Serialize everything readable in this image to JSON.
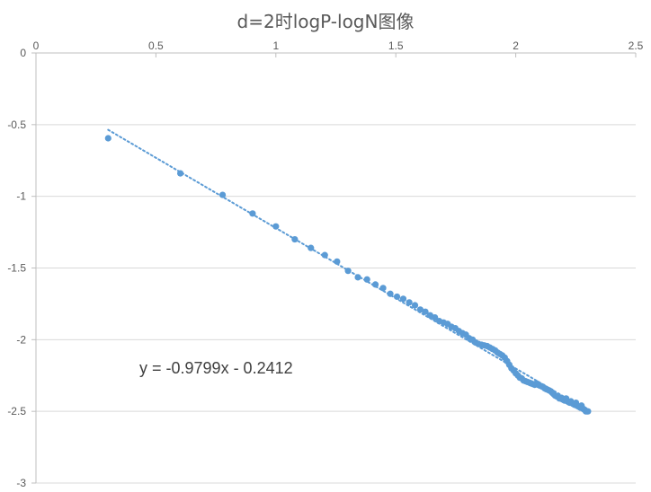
{
  "chart_data": {
    "type": "scatter",
    "title": "d=2时logP-logN图像",
    "xlabel": "",
    "ylabel": "",
    "xlim": [
      0,
      2.5
    ],
    "ylim": [
      -3,
      0
    ],
    "x_ticks": [
      0,
      0.5,
      1,
      1.5,
      2,
      2.5
    ],
    "x_tick_labels": [
      "0",
      "0.5",
      "1",
      "1.5",
      "2",
      "2.5"
    ],
    "y_ticks": [
      0,
      -0.5,
      -1,
      -1.5,
      -2,
      -2.5,
      -3
    ],
    "y_tick_labels": [
      "0",
      "-0.5",
      "-1",
      "-1.5",
      "-2",
      "-2.5",
      "-3"
    ],
    "grid": "horizontal",
    "x_axis_position": "top",
    "marker_color": "#5B9BD5",
    "series": [
      {
        "points": [
          [
            0.301,
            -0.595
          ],
          [
            0.602,
            -0.84
          ],
          [
            0.778,
            -0.99
          ],
          [
            0.903,
            -1.12
          ],
          [
            1.0,
            -1.21
          ],
          [
            1.079,
            -1.3
          ],
          [
            1.146,
            -1.36
          ],
          [
            1.204,
            -1.41
          ],
          [
            1.255,
            -1.455
          ],
          [
            1.301,
            -1.52
          ],
          [
            1.342,
            -1.565
          ],
          [
            1.38,
            -1.58
          ],
          [
            1.415,
            -1.615
          ],
          [
            1.447,
            -1.64
          ],
          [
            1.477,
            -1.68
          ],
          [
            1.505,
            -1.7
          ],
          [
            1.531,
            -1.715
          ],
          [
            1.556,
            -1.74
          ],
          [
            1.58,
            -1.76
          ],
          [
            1.602,
            -1.79
          ],
          [
            1.623,
            -1.805
          ],
          [
            1.643,
            -1.83
          ],
          [
            1.663,
            -1.845
          ],
          [
            1.681,
            -1.87
          ],
          [
            1.699,
            -1.88
          ],
          [
            1.716,
            -1.89
          ],
          [
            1.732,
            -1.91
          ],
          [
            1.748,
            -1.92
          ],
          [
            1.763,
            -1.94
          ],
          [
            1.778,
            -1.955
          ],
          [
            1.792,
            -1.965
          ],
          [
            1.806,
            -1.99
          ],
          [
            1.82,
            -2.0
          ],
          [
            1.833,
            -2.02
          ],
          [
            1.845,
            -2.03
          ],
          [
            1.857,
            -2.035
          ],
          [
            1.869,
            -2.04
          ],
          [
            1.881,
            -2.045
          ],
          [
            1.892,
            -2.055
          ],
          [
            1.903,
            -2.065
          ],
          [
            1.914,
            -2.075
          ],
          [
            1.924,
            -2.09
          ],
          [
            1.934,
            -2.1
          ],
          [
            1.944,
            -2.11
          ],
          [
            1.954,
            -2.125
          ],
          [
            1.964,
            -2.15
          ],
          [
            1.973,
            -2.175
          ],
          [
            1.982,
            -2.2
          ],
          [
            1.991,
            -2.215
          ],
          [
            2.0,
            -2.235
          ],
          [
            2.009,
            -2.25
          ],
          [
            2.017,
            -2.265
          ],
          [
            2.025,
            -2.27
          ],
          [
            2.033,
            -2.285
          ],
          [
            2.041,
            -2.29
          ],
          [
            2.049,
            -2.295
          ],
          [
            2.057,
            -2.3
          ],
          [
            2.064,
            -2.305
          ],
          [
            2.072,
            -2.31
          ],
          [
            2.079,
            -2.315
          ],
          [
            2.086,
            -2.305
          ],
          [
            2.093,
            -2.315
          ],
          [
            2.1,
            -2.32
          ],
          [
            2.107,
            -2.325
          ],
          [
            2.114,
            -2.33
          ],
          [
            2.121,
            -2.34
          ],
          [
            2.127,
            -2.345
          ],
          [
            2.134,
            -2.35
          ],
          [
            2.14,
            -2.355
          ],
          [
            2.146,
            -2.36
          ],
          [
            2.152,
            -2.37
          ],
          [
            2.158,
            -2.38
          ],
          [
            2.164,
            -2.39
          ],
          [
            2.17,
            -2.395
          ],
          [
            2.176,
            -2.4
          ],
          [
            2.182,
            -2.41
          ],
          [
            2.188,
            -2.405
          ],
          [
            2.193,
            -2.415
          ],
          [
            2.199,
            -2.42
          ],
          [
            2.204,
            -2.425
          ],
          [
            2.21,
            -2.41
          ],
          [
            2.215,
            -2.43
          ],
          [
            2.22,
            -2.435
          ],
          [
            2.225,
            -2.44
          ],
          [
            2.23,
            -2.43
          ],
          [
            2.236,
            -2.445
          ],
          [
            2.241,
            -2.45
          ],
          [
            2.246,
            -2.455
          ],
          [
            2.251,
            -2.44
          ],
          [
            2.255,
            -2.46
          ],
          [
            2.26,
            -2.465
          ],
          [
            2.265,
            -2.47
          ],
          [
            2.27,
            -2.475
          ],
          [
            2.274,
            -2.46
          ],
          [
            2.279,
            -2.48
          ],
          [
            2.283,
            -2.485
          ],
          [
            2.288,
            -2.49
          ],
          [
            2.292,
            -2.5
          ],
          [
            2.297,
            -2.5
          ],
          [
            2.301,
            -2.5
          ]
        ]
      }
    ],
    "trendline": {
      "type": "linear",
      "slope": -0.9799,
      "intercept": -0.2412,
      "x_range": [
        0.301,
        2.301
      ],
      "style": "dotted",
      "color": "#5B9BD5",
      "equation_label": "y = -0.9799x - 0.2412"
    }
  }
}
